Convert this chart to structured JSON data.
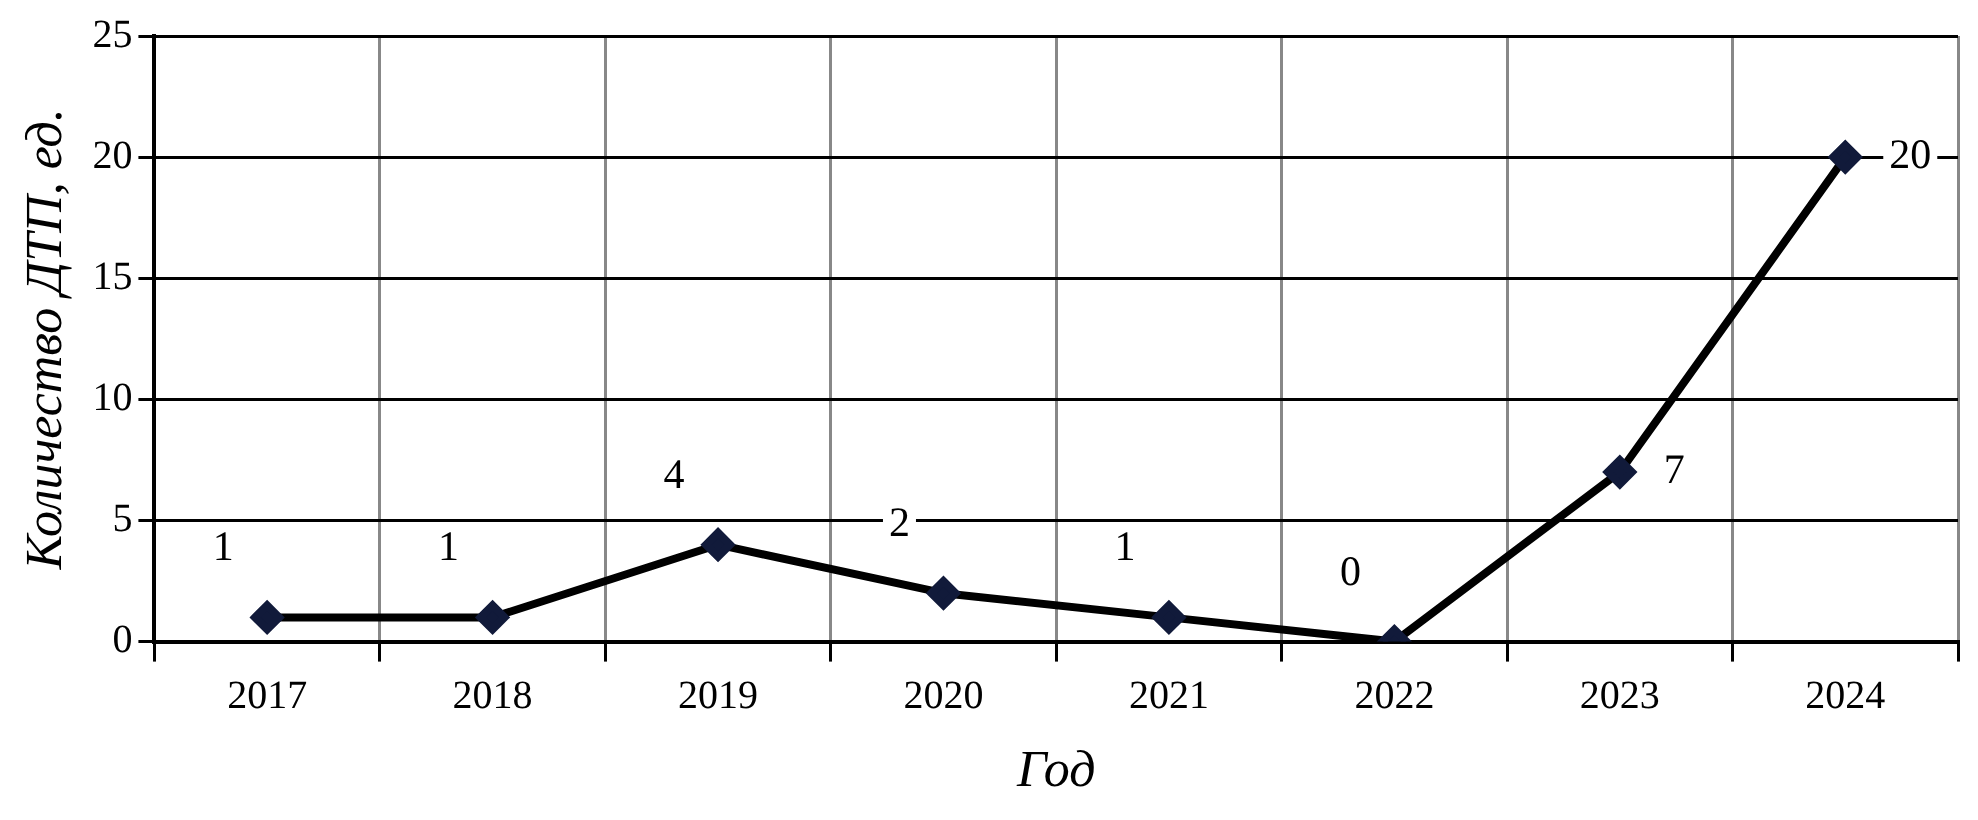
{
  "chart_data": {
    "type": "line",
    "xlabel": "Год",
    "ylabel": "Количество ДТП, ед.",
    "categories": [
      "2017",
      "2018",
      "2019",
      "2020",
      "2021",
      "2022",
      "2023",
      "2024"
    ],
    "series": [
      {
        "color": "#111a3a",
        "values": [
          1,
          1,
          4,
          2,
          1,
          0,
          7,
          20
        ]
      }
    ],
    "ylim": [
      0,
      25
    ],
    "yticks": [
      0,
      5,
      10,
      15,
      20,
      25
    ],
    "grid": true,
    "marker": "diamond",
    "data_labels": true,
    "legend": false
  }
}
